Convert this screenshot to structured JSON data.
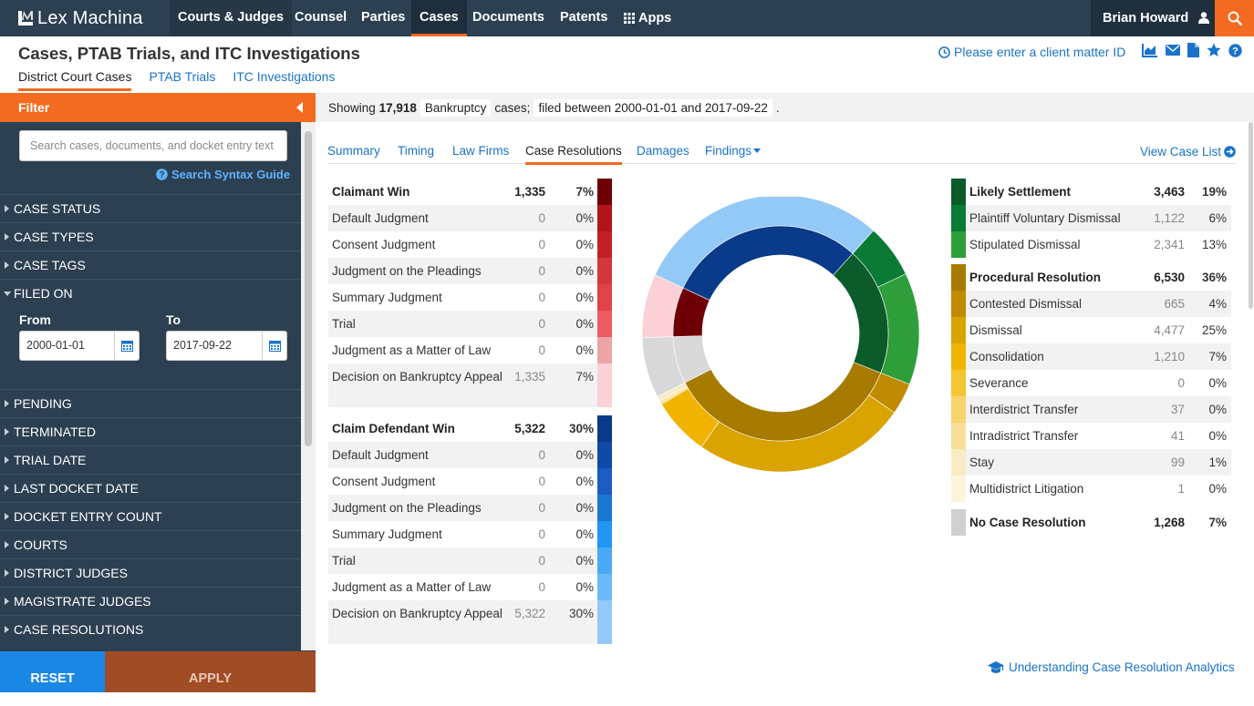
{
  "app": {
    "logo_text": "Lex Machina",
    "nav": [
      {
        "label": "Courts & Judges"
      },
      {
        "label": "Counsel"
      },
      {
        "label": "Parties"
      },
      {
        "label": "Cases"
      },
      {
        "label": "Documents"
      },
      {
        "label": "Patents"
      },
      {
        "label": "Apps"
      }
    ],
    "user_name": "Brian Howard"
  },
  "header": {
    "title": "Cases, PTAB Trials, and ITC Investigations",
    "tabs": [
      {
        "label": "District Court Cases",
        "active": true
      },
      {
        "label": "PTAB Trials"
      },
      {
        "label": "ITC Investigations"
      }
    ],
    "client_matter_link": "Please enter a client matter ID"
  },
  "sidebar": {
    "filter_label": "Filter",
    "search_placeholder": "Search cases, documents, and docket entry text",
    "syntax_guide": "Search Syntax Guide",
    "items": [
      {
        "label": "CASE STATUS"
      },
      {
        "label": "CASE TYPES"
      },
      {
        "label": "CASE TAGS"
      },
      {
        "label": "FILED ON",
        "expanded": true
      },
      {
        "label": "PENDING"
      },
      {
        "label": "TERMINATED"
      },
      {
        "label": "TRIAL DATE"
      },
      {
        "label": "LAST DOCKET DATE"
      },
      {
        "label": "DOCKET ENTRY COUNT"
      },
      {
        "label": "COURTS"
      },
      {
        "label": "DISTRICT JUDGES"
      },
      {
        "label": "MAGISTRATE JUDGES"
      },
      {
        "label": "CASE RESOLUTIONS"
      }
    ],
    "filed_on": {
      "from_label": "From",
      "to_label": "To",
      "from_value": "2000-01-01",
      "to_value": "2017-09-22"
    },
    "reset_label": "RESET",
    "apply_label": "APPLY"
  },
  "summary": {
    "showing": "Showing",
    "count": "17,918",
    "case_type": "Bankruptcy",
    "cases_word": "cases;",
    "filed_text": "filed between 2000-01-01 and 2017-09-22",
    "period": "."
  },
  "tabs": [
    {
      "label": "Summary"
    },
    {
      "label": "Timing"
    },
    {
      "label": "Law Firms"
    },
    {
      "label": "Case Resolutions",
      "active": true
    },
    {
      "label": "Damages"
    },
    {
      "label": "Findings"
    }
  ],
  "view_case_list": "View Case List",
  "claimant_win": {
    "header": {
      "label": "Claimant Win",
      "count": "1,335",
      "pct": "7%",
      "color": "#6e0005"
    },
    "rows": [
      {
        "label": "Default Judgment",
        "count": "0",
        "pct": "0%",
        "color": "#b3141c"
      },
      {
        "label": "Consent Judgment",
        "count": "0",
        "pct": "0%",
        "color": "#c41e26"
      },
      {
        "label": "Judgment on the Pleadings",
        "count": "0",
        "pct": "0%",
        "color": "#d3363d"
      },
      {
        "label": "Summary Judgment",
        "count": "0",
        "pct": "0%",
        "color": "#e0434a"
      },
      {
        "label": "Trial",
        "count": "0",
        "pct": "0%",
        "color": "#eb5b60"
      },
      {
        "label": "Judgment as a Matter of Law",
        "count": "0",
        "pct": "0%",
        "color": "#eca4a5"
      },
      {
        "label": "Decision on Bankruptcy Appeal",
        "count": "1,335",
        "pct": "7%",
        "color": "#fbd0d6"
      }
    ]
  },
  "claim_defendant_win": {
    "header": {
      "label": "Claim Defendant Win",
      "count": "5,322",
      "pct": "30%",
      "color": "#0a3a8a"
    },
    "rows": [
      {
        "label": "Default Judgment",
        "count": "0",
        "pct": "0%",
        "color": "#0f4aa8"
      },
      {
        "label": "Consent Judgment",
        "count": "0",
        "pct": "0%",
        "color": "#1a5bc4"
      },
      {
        "label": "Judgment on the Pleadings",
        "count": "0",
        "pct": "0%",
        "color": "#1b76d2"
      },
      {
        "label": "Summary Judgment",
        "count": "0",
        "pct": "0%",
        "color": "#2196f3"
      },
      {
        "label": "Trial",
        "count": "0",
        "pct": "0%",
        "color": "#4aa9f5"
      },
      {
        "label": "Judgment as a Matter of Law",
        "count": "0",
        "pct": "0%",
        "color": "#6cbaf7"
      },
      {
        "label": "Decision on Bankruptcy Appeal",
        "count": "5,322",
        "pct": "30%",
        "color": "#93c9f6"
      }
    ]
  },
  "likely_settlement": {
    "header": {
      "label": "Likely Settlement",
      "count": "3,463",
      "pct": "19%",
      "color": "#0b5b2b"
    },
    "rows": [
      {
        "label": "Plaintiff Voluntary Dismissal",
        "count": "1,122",
        "pct": "6%",
        "color": "#0b7a34"
      },
      {
        "label": "Stipulated Dismissal",
        "count": "2,341",
        "pct": "13%",
        "color": "#2e9e3a"
      }
    ]
  },
  "procedural_resolution": {
    "header": {
      "label": "Procedural Resolution",
      "count": "6,530",
      "pct": "36%",
      "color": "#a77b00"
    },
    "rows": [
      {
        "label": "Contested Dismissal",
        "count": "665",
        "pct": "4%",
        "color": "#c08b00"
      },
      {
        "label": "Dismissal",
        "count": "4,477",
        "pct": "25%",
        "color": "#d9a300"
      },
      {
        "label": "Consolidation",
        "count": "1,210",
        "pct": "7%",
        "color": "#f0b400"
      },
      {
        "label": "Severance",
        "count": "0",
        "pct": "0%",
        "color": "#f5c633"
      },
      {
        "label": "Interdistrict Transfer",
        "count": "37",
        "pct": "0%",
        "color": "#f7d470"
      },
      {
        "label": "Intradistrict Transfer",
        "count": "41",
        "pct": "0%",
        "color": "#f8df99"
      },
      {
        "label": "Stay",
        "count": "99",
        "pct": "1%",
        "color": "#faeac3"
      },
      {
        "label": "Multidistrict Litigation",
        "count": "1",
        "pct": "0%",
        "color": "#fcf4dd"
      }
    ]
  },
  "no_case_resolution": {
    "label": "No Case Resolution",
    "count": "1,268",
    "pct": "7%",
    "color": "#d0d0d0"
  },
  "chart_data": {
    "type": "pie",
    "inner": [
      {
        "name": "Likely Settlement",
        "value": 3463,
        "color": "#0b5b2b"
      },
      {
        "name": "Procedural Resolution",
        "value": 6530,
        "color": "#a77b00"
      },
      {
        "name": "No Case Resolution",
        "value": 1268,
        "color": "#d8d8d8"
      },
      {
        "name": "Claimant Win",
        "value": 1335,
        "color": "#6e0005"
      },
      {
        "name": "Claim Defendant Win",
        "value": 5322,
        "color": "#0a3a8a"
      }
    ],
    "outer": [
      {
        "name": "Plaintiff Voluntary Dismissal",
        "value": 1122,
        "color": "#0b7a34"
      },
      {
        "name": "Stipulated Dismissal",
        "value": 2341,
        "color": "#2e9e3a"
      },
      {
        "name": "Contested Dismissal",
        "value": 665,
        "color": "#c08b00"
      },
      {
        "name": "Dismissal",
        "value": 4477,
        "color": "#d9a300"
      },
      {
        "name": "Consolidation",
        "value": 1210,
        "color": "#f0b400"
      },
      {
        "name": "Interdistrict Transfer",
        "value": 37,
        "color": "#f7d470"
      },
      {
        "name": "Intradistrict Transfer",
        "value": 41,
        "color": "#f8df99"
      },
      {
        "name": "Stay",
        "value": 99,
        "color": "#faeac3"
      },
      {
        "name": "Multidistrict Litigation",
        "value": 1,
        "color": "#fcf4dd"
      },
      {
        "name": "No Case Resolution",
        "value": 1268,
        "color": "#d8d8d8"
      },
      {
        "name": "Decision on Bankruptcy Appeal (Claimant Win)",
        "value": 1335,
        "color": "#fbd0d6"
      },
      {
        "name": "Decision on Bankruptcy Appeal (Claim Defendant Win)",
        "value": 5322,
        "color": "#93c9f6"
      }
    ]
  },
  "footer_link": "Understanding Case Resolution Analytics"
}
